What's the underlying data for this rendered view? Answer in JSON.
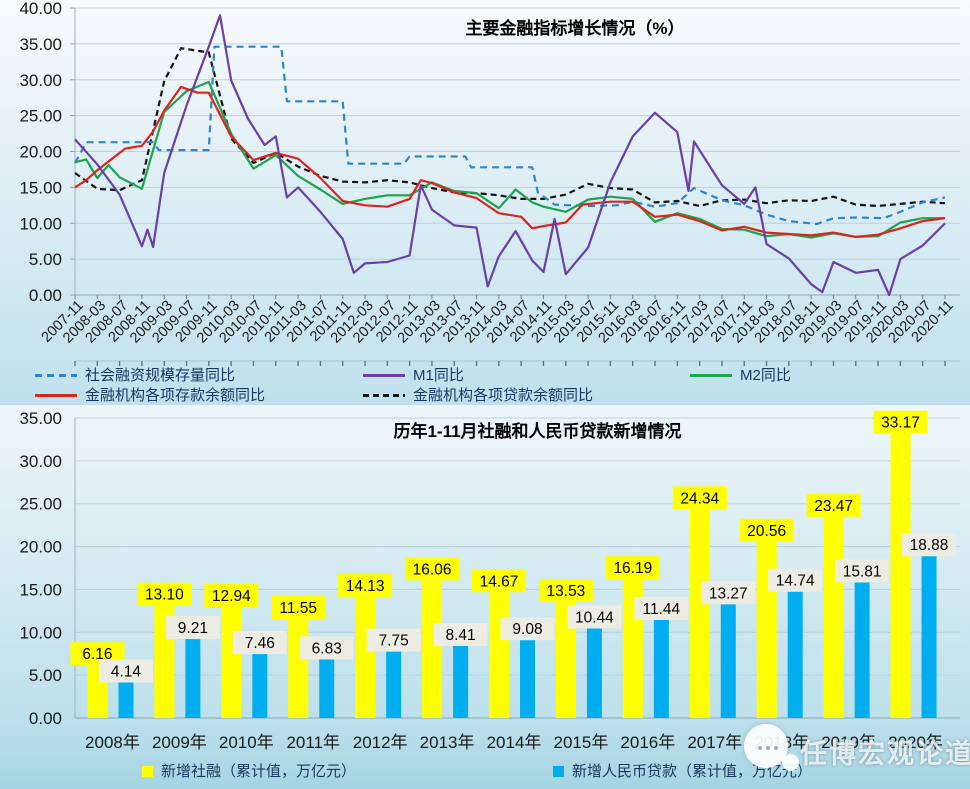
{
  "watermark": {
    "text": "任博宏观论道"
  },
  "chart_data": [
    {
      "type": "line",
      "title": "主要金融指标增长情况（%）",
      "ylabel": "",
      "xlabel": "",
      "ylim": [
        0,
        40
      ],
      "y_tick_step": 5,
      "y_tick_labels": [
        "0.00",
        "5.00",
        "10.00",
        "15.00",
        "20.00",
        "25.00",
        "30.00",
        "35.00",
        "40.00"
      ],
      "grid": true,
      "legend_position": "bottom",
      "x_tick_labels": [
        "2007-11",
        "2008-03",
        "2008-07",
        "2008-11",
        "2009-03",
        "2009-07",
        "2009-11",
        "2010-03",
        "2010-07",
        "2010-11",
        "2011-03",
        "2011-07",
        "2011-11",
        "2012-03",
        "2012-07",
        "2012-11",
        "2013-03",
        "2013-07",
        "2013-11",
        "2014-03",
        "2014-07",
        "2014-11",
        "2015-03",
        "2015-07",
        "2015-11",
        "2016-03",
        "2016-07",
        "2016-11",
        "2017-03",
        "2017-07",
        "2017-11",
        "2018-03",
        "2018-07",
        "2018-11",
        "2019-03",
        "2019-07",
        "2019-11",
        "2020-03",
        "2020-07",
        "2020-11"
      ],
      "series": [
        {
          "name": "社会融资规模存量同比",
          "color": "#2E86C8",
          "dash": "7 5",
          "slug": "afre-stock-yoy",
          "points": [
            [
              "2007-11",
              18.4
            ],
            [
              "2008-01",
              21.3
            ],
            [
              "2009-01",
              21.3
            ],
            [
              "2009-02",
              20.2
            ],
            [
              "2009-11",
              20.2
            ],
            [
              "2009-12",
              34.6
            ],
            [
              "2010-12",
              34.6
            ],
            [
              "2011-01",
              27.0
            ],
            [
              "2011-11",
              27.0
            ],
            [
              "2011-12",
              18.3
            ],
            [
              "2012-10",
              18.3
            ],
            [
              "2012-11",
              19.3
            ],
            [
              "2013-09",
              19.3
            ],
            [
              "2013-10",
              17.8
            ],
            [
              "2014-09",
              17.8
            ],
            [
              "2014-10",
              14.3
            ],
            [
              "2015-01",
              12.6
            ],
            [
              "2015-07",
              12.4
            ],
            [
              "2015-12",
              12.5
            ],
            [
              "2016-03",
              13.0
            ],
            [
              "2016-07",
              12.3
            ],
            [
              "2016-11",
              12.8
            ],
            [
              "2017-02",
              14.9
            ],
            [
              "2017-07",
              13.2
            ],
            [
              "2017-11",
              12.5
            ],
            [
              "2018-03",
              11.2
            ],
            [
              "2018-07",
              10.3
            ],
            [
              "2018-12",
              9.9
            ],
            [
              "2019-03",
              10.7
            ],
            [
              "2019-07",
              10.8
            ],
            [
              "2019-12",
              10.7
            ],
            [
              "2020-03",
              11.6
            ],
            [
              "2020-07",
              12.9
            ],
            [
              "2020-11",
              13.6
            ]
          ]
        },
        {
          "name": "M1同比",
          "color": "#6C3FA6",
          "dash": null,
          "slug": "m1-yoy",
          "points": [
            [
              "2007-11",
              21.7
            ],
            [
              "2008-03",
              18.2
            ],
            [
              "2008-07",
              14.0
            ],
            [
              "2008-11",
              6.8
            ],
            [
              "2008-12",
              9.1
            ],
            [
              "2009-01",
              6.7
            ],
            [
              "2009-03",
              17.0
            ],
            [
              "2009-07",
              26.4
            ],
            [
              "2009-11",
              34.6
            ],
            [
              "2010-01",
              39.0
            ],
            [
              "2010-03",
              29.9
            ],
            [
              "2010-06",
              24.6
            ],
            [
              "2010-09",
              20.9
            ],
            [
              "2010-11",
              22.1
            ],
            [
              "2011-01",
              13.6
            ],
            [
              "2011-03",
              15.0
            ],
            [
              "2011-07",
              11.6
            ],
            [
              "2011-11",
              7.8
            ],
            [
              "2012-01",
              3.1
            ],
            [
              "2012-03",
              4.4
            ],
            [
              "2012-07",
              4.6
            ],
            [
              "2012-11",
              5.5
            ],
            [
              "2013-01",
              15.3
            ],
            [
              "2013-03",
              11.9
            ],
            [
              "2013-07",
              9.7
            ],
            [
              "2013-11",
              9.4
            ],
            [
              "2014-01",
              1.2
            ],
            [
              "2014-03",
              5.4
            ],
            [
              "2014-06",
              8.9
            ],
            [
              "2014-09",
              4.8
            ],
            [
              "2014-11",
              3.2
            ],
            [
              "2015-01",
              10.6
            ],
            [
              "2015-03",
              2.9
            ],
            [
              "2015-07",
              6.6
            ],
            [
              "2015-11",
              15.7
            ],
            [
              "2016-03",
              22.1
            ],
            [
              "2016-07",
              25.4
            ],
            [
              "2016-11",
              22.7
            ],
            [
              "2017-01",
              14.5
            ],
            [
              "2017-02",
              21.4
            ],
            [
              "2017-07",
              15.3
            ],
            [
              "2017-11",
              12.7
            ],
            [
              "2018-01",
              15.0
            ],
            [
              "2018-03",
              7.1
            ],
            [
              "2018-07",
              5.1
            ],
            [
              "2018-11",
              1.5
            ],
            [
              "2019-01",
              0.4
            ],
            [
              "2019-03",
              4.6
            ],
            [
              "2019-07",
              3.1
            ],
            [
              "2019-11",
              3.5
            ],
            [
              "2020-01",
              0.0
            ],
            [
              "2020-03",
              5.0
            ],
            [
              "2020-07",
              6.9
            ],
            [
              "2020-11",
              10.0
            ]
          ]
        },
        {
          "name": "M2同比",
          "color": "#1EA34E",
          "dash": null,
          "slug": "m2-yoy",
          "points": [
            [
              "2007-11",
              18.5
            ],
            [
              "2008-01",
              18.9
            ],
            [
              "2008-03",
              16.3
            ],
            [
              "2008-05",
              18.1
            ],
            [
              "2008-07",
              16.4
            ],
            [
              "2008-11",
              14.8
            ],
            [
              "2009-03",
              25.5
            ],
            [
              "2009-07",
              28.4
            ],
            [
              "2009-11",
              29.7
            ],
            [
              "2010-03",
              22.5
            ],
            [
              "2010-07",
              17.6
            ],
            [
              "2010-11",
              19.5
            ],
            [
              "2011-03",
              16.6
            ],
            [
              "2011-07",
              14.7
            ],
            [
              "2011-11",
              12.7
            ],
            [
              "2012-03",
              13.4
            ],
            [
              "2012-07",
              13.9
            ],
            [
              "2012-11",
              13.9
            ],
            [
              "2013-03",
              15.7
            ],
            [
              "2013-07",
              14.5
            ],
            [
              "2013-11",
              14.2
            ],
            [
              "2014-03",
              12.1
            ],
            [
              "2014-06",
              14.7
            ],
            [
              "2014-09",
              12.9
            ],
            [
              "2014-11",
              12.3
            ],
            [
              "2015-03",
              11.6
            ],
            [
              "2015-07",
              13.3
            ],
            [
              "2015-11",
              13.7
            ],
            [
              "2016-03",
              13.4
            ],
            [
              "2016-07",
              10.2
            ],
            [
              "2016-11",
              11.4
            ],
            [
              "2017-03",
              10.6
            ],
            [
              "2017-07",
              9.2
            ],
            [
              "2017-11",
              9.1
            ],
            [
              "2018-03",
              8.2
            ],
            [
              "2018-07",
              8.5
            ],
            [
              "2018-11",
              8.0
            ],
            [
              "2019-03",
              8.6
            ],
            [
              "2019-07",
              8.1
            ],
            [
              "2019-11",
              8.2
            ],
            [
              "2020-03",
              10.1
            ],
            [
              "2020-07",
              10.7
            ],
            [
              "2020-11",
              10.7
            ]
          ]
        },
        {
          "name": "金融机构各项存款余额同比",
          "color": "#DC241F",
          "dash": null,
          "slug": "deposits-yoy",
          "points": [
            [
              "2007-11",
              15.0
            ],
            [
              "2008-01",
              16.0
            ],
            [
              "2008-03",
              17.4
            ],
            [
              "2008-06",
              19.2
            ],
            [
              "2008-08",
              20.4
            ],
            [
              "2008-11",
              20.8
            ],
            [
              "2009-01",
              22.8
            ],
            [
              "2009-03",
              25.7
            ],
            [
              "2009-06",
              29.0
            ],
            [
              "2009-09",
              28.2
            ],
            [
              "2009-11",
              28.2
            ],
            [
              "2010-03",
              22.1
            ],
            [
              "2010-07",
              18.8
            ],
            [
              "2010-11",
              19.8
            ],
            [
              "2011-03",
              19.0
            ],
            [
              "2011-07",
              16.3
            ],
            [
              "2011-11",
              13.1
            ],
            [
              "2012-03",
              12.5
            ],
            [
              "2012-07",
              12.3
            ],
            [
              "2012-11",
              13.4
            ],
            [
              "2013-01",
              16.0
            ],
            [
              "2013-03",
              15.6
            ],
            [
              "2013-07",
              14.3
            ],
            [
              "2013-11",
              13.5
            ],
            [
              "2014-03",
              11.4
            ],
            [
              "2014-07",
              10.9
            ],
            [
              "2014-09",
              9.3
            ],
            [
              "2014-11",
              9.6
            ],
            [
              "2015-03",
              10.1
            ],
            [
              "2015-06",
              12.6
            ],
            [
              "2015-11",
              13.0
            ],
            [
              "2016-03",
              13.0
            ],
            [
              "2016-07",
              10.9
            ],
            [
              "2016-11",
              11.2
            ],
            [
              "2017-03",
              10.3
            ],
            [
              "2017-07",
              9.0
            ],
            [
              "2017-11",
              9.5
            ],
            [
              "2018-03",
              8.7
            ],
            [
              "2018-07",
              8.5
            ],
            [
              "2018-11",
              8.3
            ],
            [
              "2019-03",
              8.7
            ],
            [
              "2019-07",
              8.1
            ],
            [
              "2019-11",
              8.4
            ],
            [
              "2020-03",
              9.3
            ],
            [
              "2020-07",
              10.3
            ],
            [
              "2020-11",
              10.7
            ]
          ]
        },
        {
          "name": "金融机构各项贷款余额同比",
          "color": "#151515",
          "dash": "6 4",
          "slug": "loans-yoy",
          "points": [
            [
              "2007-11",
              17.0
            ],
            [
              "2008-03",
              14.8
            ],
            [
              "2008-07",
              14.6
            ],
            [
              "2008-11",
              16.0
            ],
            [
              "2009-03",
              29.8
            ],
            [
              "2009-06",
              34.4
            ],
            [
              "2009-11",
              33.8
            ],
            [
              "2010-03",
              21.8
            ],
            [
              "2010-07",
              18.4
            ],
            [
              "2010-11",
              19.8
            ],
            [
              "2011-03",
              17.9
            ],
            [
              "2011-07",
              16.6
            ],
            [
              "2011-11",
              15.8
            ],
            [
              "2012-03",
              15.7
            ],
            [
              "2012-07",
              16.0
            ],
            [
              "2012-11",
              15.7
            ],
            [
              "2013-03",
              14.9
            ],
            [
              "2013-07",
              14.3
            ],
            [
              "2013-11",
              14.2
            ],
            [
              "2014-03",
              13.9
            ],
            [
              "2014-07",
              13.4
            ],
            [
              "2014-11",
              13.4
            ],
            [
              "2015-03",
              14.0
            ],
            [
              "2015-07",
              15.5
            ],
            [
              "2015-11",
              14.9
            ],
            [
              "2016-03",
              14.7
            ],
            [
              "2016-07",
              12.9
            ],
            [
              "2016-11",
              13.1
            ],
            [
              "2017-03",
              12.4
            ],
            [
              "2017-07",
              13.2
            ],
            [
              "2017-11",
              13.3
            ],
            [
              "2018-03",
              12.8
            ],
            [
              "2018-07",
              13.2
            ],
            [
              "2018-11",
              13.1
            ],
            [
              "2019-03",
              13.7
            ],
            [
              "2019-07",
              12.6
            ],
            [
              "2019-11",
              12.4
            ],
            [
              "2020-03",
              12.7
            ],
            [
              "2020-07",
              13.0
            ],
            [
              "2020-11",
              12.8
            ]
          ]
        }
      ]
    },
    {
      "type": "bar",
      "title": "历年1-11月社融和人民币贷款新增情况",
      "categories": [
        "2008年",
        "2009年",
        "2010年",
        "2011年",
        "2012年",
        "2013年",
        "2014年",
        "2015年",
        "2016年",
        "2017年",
        "2018年",
        "2019年",
        "2020年"
      ],
      "ylim": [
        0,
        35
      ],
      "y_tick_step": 5,
      "y_tick_labels": [
        "0.00",
        "5.00",
        "10.00",
        "15.00",
        "20.00",
        "25.00",
        "30.00",
        "35.00"
      ],
      "grid": true,
      "data_labels": true,
      "legend_position": "bottom",
      "series": [
        {
          "name": "新增社融（累计值，万亿元）",
          "color": "#FFFF00",
          "label_bg": "#FFFF00",
          "slug": "new-afre",
          "values": [
            6.16,
            13.1,
            12.94,
            11.55,
            14.13,
            16.06,
            14.67,
            13.53,
            16.19,
            24.34,
            20.56,
            23.47,
            33.17
          ]
        },
        {
          "name": "新增人民币贷款（累计值，万亿元）",
          "color": "#00AEEF",
          "label_bg": "#ECECE2",
          "slug": "new-rmb-loans",
          "values": [
            4.14,
            9.21,
            7.46,
            6.83,
            7.75,
            8.41,
            9.08,
            10.44,
            11.44,
            13.27,
            14.74,
            15.81,
            18.88
          ]
        }
      ]
    }
  ]
}
